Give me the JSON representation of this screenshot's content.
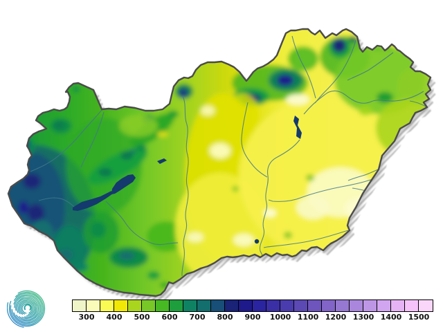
{
  "colorbar": {
    "tick_labels": [
      "300",
      "400",
      "500",
      "600",
      "700",
      "800",
      "900",
      "1000",
      "1100",
      "1200",
      "1300",
      "1400",
      "1500"
    ],
    "cells_per_tick_interval": 2,
    "segment_colors": [
      "#F0F5C8",
      "#FAFAB9",
      "#FAFA55",
      "#F2E805",
      "#AAD51E",
      "#78C828",
      "#46B923",
      "#1E9E3C",
      "#108264",
      "#136E6E",
      "#174F78",
      "#1A2378",
      "#1E1A8C",
      "#2B24A0",
      "#3A2FA5",
      "#4A3CAF",
      "#5C49B4",
      "#6E55BE",
      "#8264C8",
      "#9678D2",
      "#AA87DC",
      "#BE96E6",
      "#D2A5F0",
      "#E6B4F5",
      "#F5C3FA",
      "#FAD7FA"
    ]
  },
  "map": {
    "outline_color": "#4B4B4B",
    "shadow_color": "#8A8A8A",
    "water_color": "#143A6E",
    "river_color": "#41788C",
    "background_color": "#FFFFFF"
  },
  "logo": {
    "gradient_colors": [
      "#46BE82",
      "#2FA0AA",
      "#2A82C8"
    ]
  }
}
